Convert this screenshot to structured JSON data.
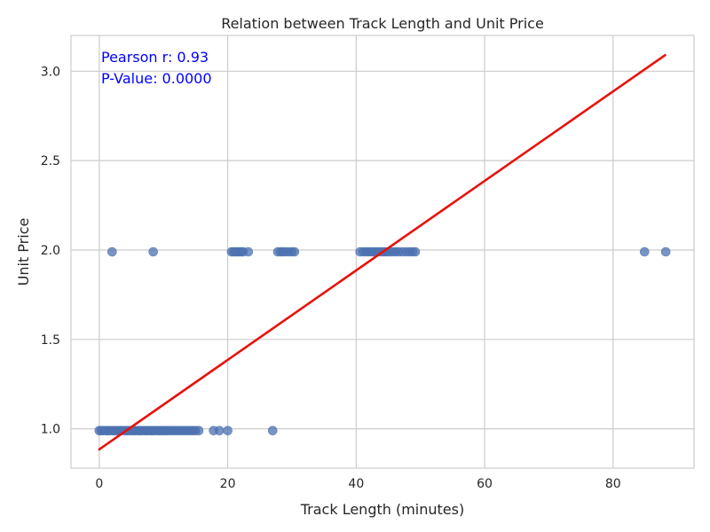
{
  "chart_data": {
    "type": "scatter",
    "title": "Relation between Track Length and Unit Price",
    "xlabel": "Track Length (minutes)",
    "ylabel": "Unit Price",
    "xlim": [
      -4.4,
      92.6
    ],
    "ylim": [
      0.78,
      3.2
    ],
    "xticks": [
      0,
      20,
      40,
      60,
      80
    ],
    "yticks": [
      1.0,
      1.5,
      2.0,
      2.5,
      3.0
    ],
    "xtick_labels": [
      "0",
      "20",
      "40",
      "60",
      "80"
    ],
    "ytick_labels": [
      "1.0",
      "1.5",
      "2.0",
      "2.5",
      "3.0"
    ],
    "grid": true,
    "point_color": "#4c72b0",
    "line_color": "#e8120c",
    "annotation_color": "#0000ff",
    "annotations": [
      "Pearson r: 0.93",
      "P-Value: 0.0000"
    ],
    "regression_line": {
      "x": [
        0.0,
        88.1
      ],
      "y": [
        0.885,
        3.09
      ]
    },
    "series": [
      {
        "price": 0.99,
        "x": [
          0.0,
          0.3,
          0.6,
          1.0,
          1.3,
          1.6,
          2.0,
          2.3,
          2.6,
          3.0,
          3.3,
          3.6,
          4.0,
          4.3,
          4.6,
          5.0,
          5.3,
          5.6,
          6.0,
          6.3,
          6.6,
          7.0,
          7.3,
          7.6,
          8.0,
          8.3,
          8.6,
          9.0,
          9.3,
          9.6,
          10.0,
          10.3,
          10.6,
          11.0,
          11.4,
          11.8,
          12.2,
          12.6,
          13.0,
          13.4,
          13.8,
          14.2,
          14.6,
          15.0,
          15.5,
          17.8,
          18.7,
          20.0,
          27.0
        ]
      },
      {
        "price": 1.99,
        "x": [
          2.0,
          8.4,
          20.6,
          20.9,
          21.2,
          21.5,
          21.8,
          22.1,
          22.4,
          23.2,
          27.8,
          28.2,
          28.6,
          29.0,
          29.5,
          30.0,
          30.4,
          40.6,
          41.1,
          41.5,
          41.9,
          42.3,
          42.7,
          43.1,
          43.5,
          43.9,
          44.3,
          44.7,
          45.1,
          45.6,
          46.1,
          46.6,
          47.2,
          47.8,
          48.3,
          48.8,
          49.2,
          84.9,
          88.2
        ]
      }
    ]
  }
}
